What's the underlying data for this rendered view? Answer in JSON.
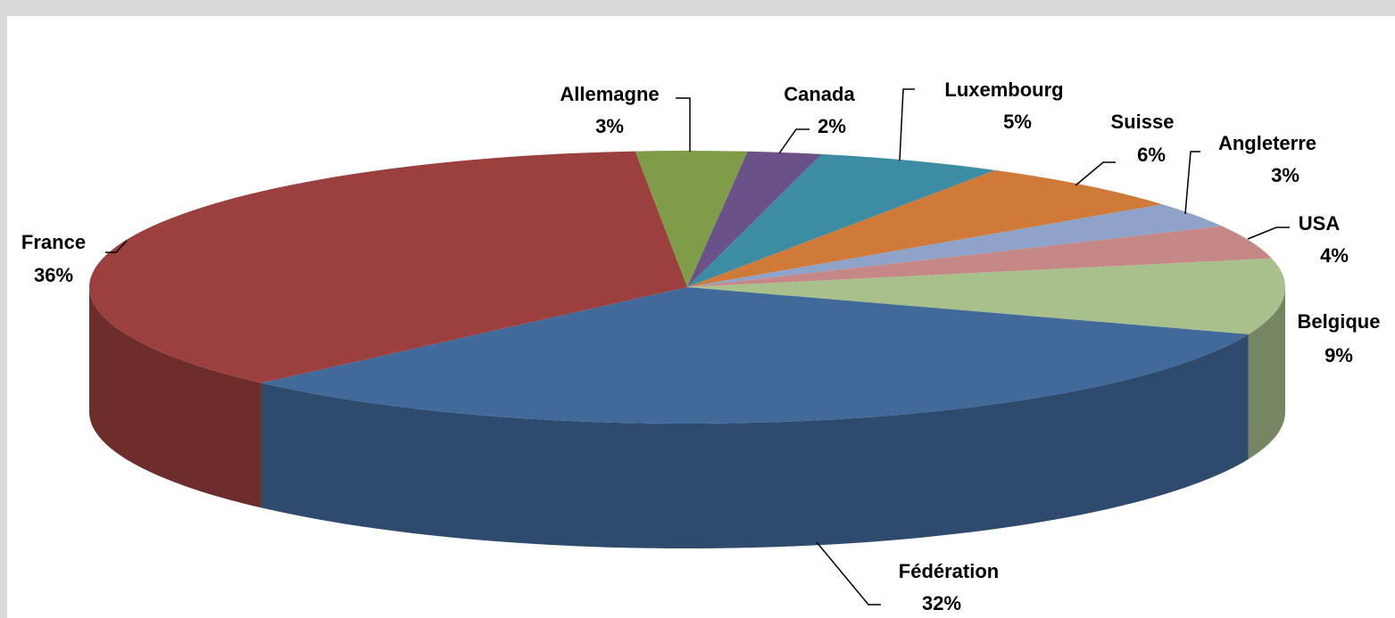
{
  "chart_data": {
    "type": "pie3d",
    "categories": [
      "Allemagne",
      "Canada",
      "Luxembourg",
      "Suisse",
      "Angleterre",
      "USA",
      "Belgique",
      "Fédération",
      "France"
    ],
    "values": [
      3,
      2,
      5,
      6,
      3,
      4,
      9,
      32,
      36
    ],
    "value_labels": [
      "3%",
      "2%",
      "5%",
      "6%",
      "3%",
      "4%",
      "9%",
      "32%",
      "36%"
    ],
    "colors": [
      "#7f9c49",
      "#6a5187",
      "#3c8da3",
      "#cf7a38",
      "#8fa3c8",
      "#c58886",
      "#a9c08c",
      "#416a9b",
      "#9b403e"
    ]
  }
}
